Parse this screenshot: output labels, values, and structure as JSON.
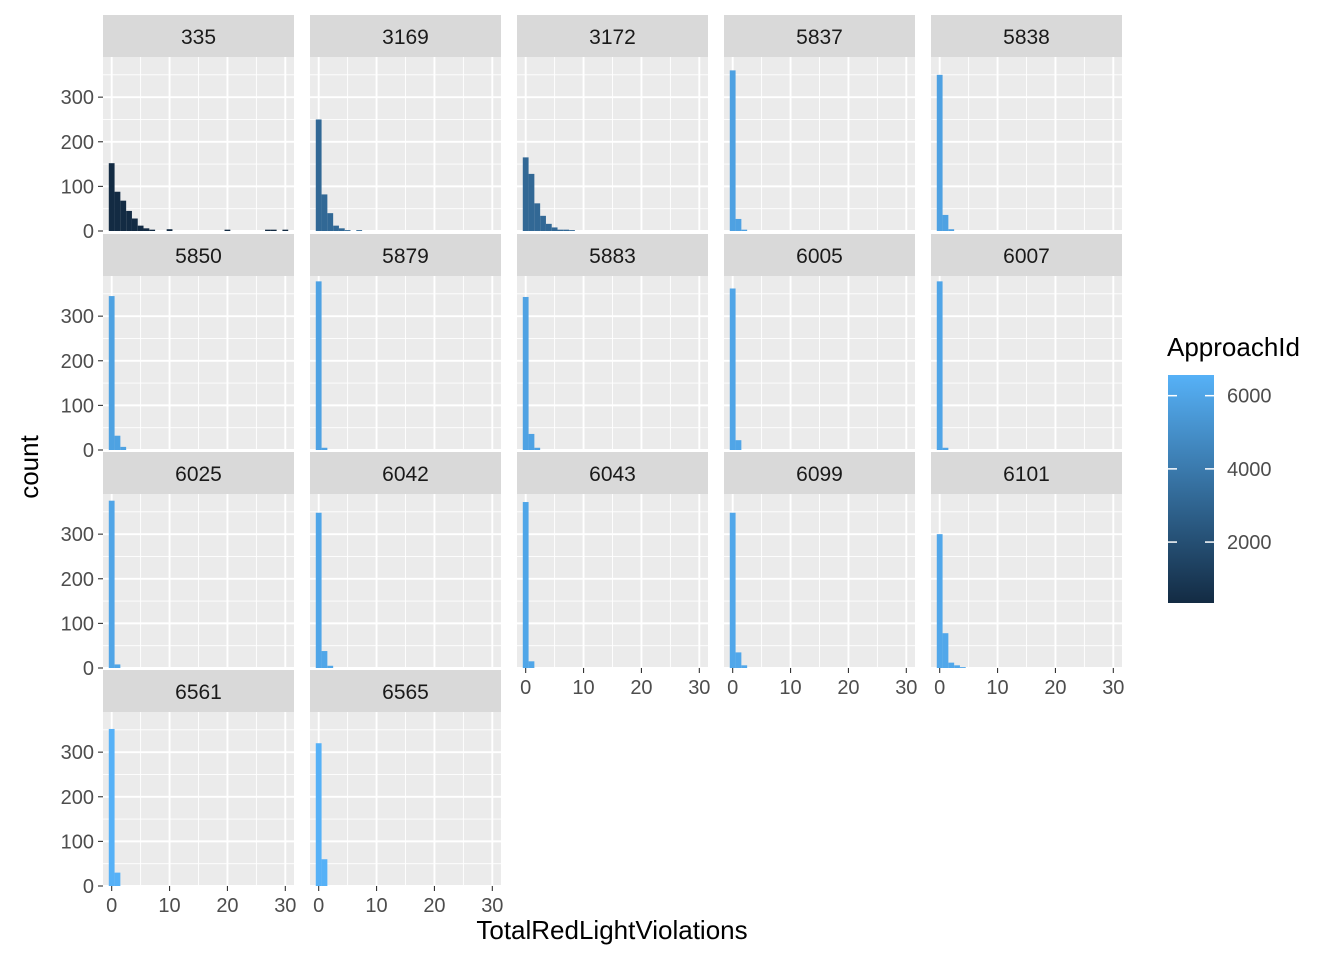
{
  "chart_data": {
    "type": "bar",
    "subtype": "faceted-histogram",
    "title": "",
    "xlabel": "TotalRedLightViolations",
    "ylabel": "count",
    "xlim": [
      -1.5,
      31.5
    ],
    "ylim": [
      0,
      390
    ],
    "x_ticks": [
      0,
      10,
      20,
      30
    ],
    "y_ticks": [
      0,
      100,
      200,
      300
    ],
    "x": [
      0,
      1,
      2,
      3,
      4,
      5,
      6,
      7,
      8,
      9,
      10,
      11,
      12,
      13,
      14,
      15,
      16,
      17,
      18,
      19,
      20,
      21,
      22,
      23,
      24,
      25,
      26,
      27,
      28,
      29,
      30
    ],
    "grid": true,
    "legend": {
      "title": "ApproachId",
      "position": "right",
      "ticks": [
        2000,
        4000,
        6000
      ],
      "range": [
        335,
        6565
      ],
      "color_low": "#132B43",
      "color_high": "#56B1F7"
    },
    "panels": [
      {
        "label": "335",
        "approach_id": 335,
        "counts": [
          152,
          88,
          68,
          45,
          28,
          12,
          6,
          3,
          0,
          0,
          4,
          0,
          0,
          0,
          0,
          0,
          0,
          0,
          0,
          0,
          3,
          0,
          0,
          0,
          0,
          0,
          0,
          3,
          3,
          0,
          3
        ]
      },
      {
        "label": "3169",
        "approach_id": 3169,
        "counts": [
          250,
          82,
          40,
          12,
          6,
          2,
          0,
          2,
          0,
          0,
          0,
          0,
          0,
          0,
          0,
          0,
          0,
          0,
          0,
          0,
          0,
          0,
          0,
          0,
          0,
          0,
          0,
          0,
          0,
          0,
          0
        ]
      },
      {
        "label": "3172",
        "approach_id": 3172,
        "counts": [
          165,
          128,
          62,
          34,
          16,
          8,
          3,
          3,
          2,
          0,
          0,
          0,
          0,
          0,
          0,
          0,
          0,
          0,
          0,
          0,
          0,
          0,
          0,
          0,
          0,
          0,
          0,
          0,
          0,
          0,
          0
        ]
      },
      {
        "label": "5837",
        "approach_id": 5837,
        "counts": [
          360,
          27,
          3,
          0,
          0,
          0,
          0,
          0,
          0,
          0,
          0,
          0,
          0,
          0,
          0,
          0,
          0,
          0,
          0,
          0,
          0,
          0,
          0,
          0,
          0,
          0,
          0,
          0,
          0,
          0,
          0
        ]
      },
      {
        "label": "5838",
        "approach_id": 5838,
        "counts": [
          350,
          36,
          4,
          0,
          0,
          0,
          0,
          0,
          0,
          0,
          0,
          0,
          0,
          0,
          0,
          0,
          0,
          0,
          0,
          0,
          0,
          0,
          0,
          0,
          0,
          0,
          0,
          0,
          0,
          0,
          0
        ]
      },
      {
        "label": "5850",
        "approach_id": 5850,
        "counts": [
          345,
          32,
          7,
          0,
          0,
          0,
          0,
          0,
          0,
          0,
          0,
          0,
          0,
          0,
          0,
          0,
          0,
          0,
          0,
          0,
          0,
          0,
          0,
          0,
          0,
          0,
          0,
          0,
          0,
          0,
          0
        ]
      },
      {
        "label": "5879",
        "approach_id": 5879,
        "counts": [
          378,
          5,
          0,
          0,
          0,
          0,
          0,
          0,
          0,
          0,
          0,
          0,
          0,
          0,
          0,
          0,
          0,
          0,
          0,
          0,
          0,
          0,
          0,
          0,
          0,
          0,
          0,
          0,
          0,
          0,
          0
        ]
      },
      {
        "label": "5883",
        "approach_id": 5883,
        "counts": [
          343,
          36,
          5,
          0,
          0,
          0,
          0,
          0,
          0,
          0,
          0,
          0,
          0,
          0,
          0,
          0,
          0,
          0,
          0,
          0,
          0,
          0,
          0,
          0,
          0,
          0,
          0,
          0,
          0,
          0,
          0
        ]
      },
      {
        "label": "6005",
        "approach_id": 6005,
        "counts": [
          362,
          22,
          0,
          0,
          0,
          0,
          0,
          0,
          0,
          0,
          0,
          0,
          0,
          0,
          0,
          0,
          0,
          0,
          0,
          0,
          0,
          0,
          0,
          0,
          0,
          0,
          0,
          0,
          0,
          0,
          0
        ]
      },
      {
        "label": "6007",
        "approach_id": 6007,
        "counts": [
          378,
          5,
          0,
          0,
          0,
          0,
          0,
          0,
          0,
          0,
          0,
          0,
          0,
          0,
          0,
          0,
          0,
          0,
          0,
          0,
          0,
          0,
          0,
          0,
          0,
          0,
          0,
          0,
          0,
          0,
          0
        ]
      },
      {
        "label": "6025",
        "approach_id": 6025,
        "counts": [
          375,
          8,
          0,
          0,
          0,
          0,
          0,
          0,
          0,
          0,
          0,
          0,
          0,
          0,
          0,
          0,
          0,
          0,
          0,
          0,
          0,
          0,
          0,
          0,
          0,
          0,
          0,
          0,
          0,
          0,
          0
        ]
      },
      {
        "label": "6042",
        "approach_id": 6042,
        "counts": [
          348,
          38,
          5,
          0,
          0,
          0,
          0,
          0,
          0,
          0,
          0,
          0,
          0,
          0,
          0,
          0,
          0,
          0,
          0,
          0,
          0,
          0,
          0,
          0,
          0,
          0,
          0,
          0,
          0,
          0,
          0
        ]
      },
      {
        "label": "6043",
        "approach_id": 6043,
        "counts": [
          372,
          15,
          0,
          0,
          0,
          0,
          0,
          0,
          0,
          0,
          0,
          0,
          0,
          0,
          0,
          0,
          0,
          0,
          0,
          0,
          0,
          0,
          0,
          0,
          0,
          0,
          0,
          0,
          0,
          0,
          0
        ]
      },
      {
        "label": "6099",
        "approach_id": 6099,
        "counts": [
          348,
          35,
          6,
          0,
          0,
          0,
          0,
          0,
          0,
          0,
          0,
          0,
          0,
          0,
          0,
          0,
          0,
          0,
          0,
          0,
          0,
          0,
          0,
          0,
          0,
          0,
          0,
          0,
          0,
          0,
          0
        ]
      },
      {
        "label": "6101",
        "approach_id": 6101,
        "counts": [
          300,
          78,
          12,
          6,
          2,
          0,
          0,
          0,
          0,
          0,
          0,
          0,
          0,
          0,
          0,
          0,
          0,
          0,
          0,
          0,
          0,
          0,
          0,
          0,
          0,
          0,
          0,
          0,
          0,
          0,
          0
        ]
      },
      {
        "label": "6561",
        "approach_id": 6561,
        "counts": [
          352,
          30,
          0,
          0,
          0,
          0,
          0,
          0,
          0,
          0,
          0,
          0,
          0,
          0,
          0,
          0,
          0,
          0,
          0,
          0,
          0,
          0,
          0,
          0,
          0,
          0,
          0,
          0,
          0,
          0,
          0
        ]
      },
      {
        "label": "6565",
        "approach_id": 6565,
        "counts": [
          320,
          60,
          0,
          0,
          0,
          0,
          0,
          0,
          0,
          0,
          0,
          0,
          0,
          0,
          0,
          0,
          0,
          0,
          0,
          0,
          0,
          0,
          0,
          0,
          0,
          0,
          0,
          0,
          0,
          0,
          0
        ]
      }
    ]
  }
}
